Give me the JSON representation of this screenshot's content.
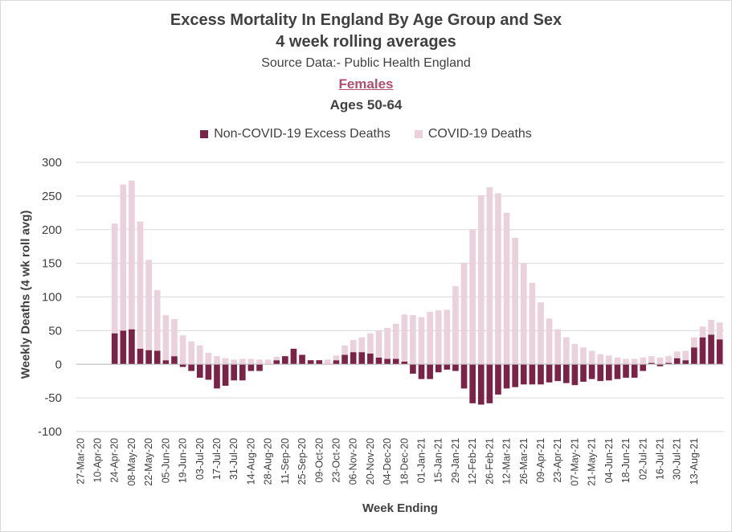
{
  "chart_data": {
    "type": "bar",
    "title": "Excess Mortality In England By Age Group and Sex",
    "subtitle": "4 week rolling averages",
    "source": "Source Data:- Public Health England",
    "sex_label": "Females",
    "age_label": "Ages 50-64",
    "xlabel": "Week Ending",
    "ylabel": "Weekly Deaths (4 wk roll avg)",
    "ylim": [
      -100,
      300
    ],
    "yticks": [
      300,
      250,
      200,
      150,
      100,
      50,
      0,
      -50,
      -100
    ],
    "stacked": true,
    "grid": true,
    "legend_position": "top",
    "x_tick_labels": [
      "27-Mar-20",
      "10-Apr-20",
      "24-Apr-20",
      "08-May-20",
      "22-May-20",
      "05-Jun-20",
      "19-Jun-20",
      "03-Jul-20",
      "17-Jul-20",
      "31-Jul-20",
      "14-Aug-20",
      "28-Aug-20",
      "11-Sep-20",
      "25-Sep-20",
      "09-Oct-20",
      "23-Oct-20",
      "06-Nov-20",
      "20-Nov-20",
      "04-Dec-20",
      "18-Dec-20",
      "01-Jan-21",
      "15-Jan-21",
      "29-Jan-21",
      "12-Feb-21",
      "26-Feb-21",
      "12-Mar-21",
      "26-Mar-21",
      "09-Apr-21",
      "23-Apr-21",
      "07-May-21",
      "21-May-21",
      "04-Jun-21",
      "18-Jun-21",
      "02-Jul-21",
      "16-Jul-21",
      "30-Jul-21",
      "13-Aug-21"
    ],
    "series": [
      {
        "name": "Non-COVID-19 Excess Deaths",
        "color": "#7b2346",
        "values": [
          0,
          0,
          0,
          0,
          46,
          50,
          52,
          23,
          21,
          20,
          6,
          12,
          -4,
          -10,
          -20,
          -23,
          -36,
          -32,
          -24,
          -24,
          -10,
          -10,
          0,
          6,
          12,
          23,
          14,
          6,
          6,
          0,
          6,
          14,
          18,
          18,
          16,
          10,
          8,
          8,
          4,
          -14,
          -22,
          -22,
          -12,
          -8,
          -10,
          -36,
          -58,
          -60,
          -58,
          -45,
          -36,
          -34,
          -30,
          -30,
          -30,
          -27,
          -25,
          -28,
          -31,
          -26,
          -22,
          -25,
          -24,
          -22,
          -20,
          -20,
          -10,
          2,
          -3,
          2,
          9,
          6,
          25,
          40,
          44,
          37
        ]
      },
      {
        "name": "COVID-19 Deaths",
        "color": "#ead1dc",
        "values": [
          0,
          0,
          0,
          0,
          163,
          217,
          221,
          189,
          134,
          90,
          67,
          55,
          43,
          34,
          28,
          17,
          12,
          9,
          7,
          8,
          8,
          7,
          7,
          5,
          0,
          0,
          0,
          0,
          0,
          7,
          7,
          14,
          18,
          22,
          30,
          40,
          46,
          52,
          70,
          73,
          70,
          78,
          80,
          81,
          116,
          151,
          200,
          251,
          263,
          254,
          225,
          188,
          150,
          121,
          92,
          68,
          52,
          40,
          30,
          25,
          20,
          15,
          13,
          10,
          8,
          8,
          10,
          10,
          10,
          10,
          10,
          14,
          15,
          16,
          22,
          25
        ]
      }
    ]
  }
}
